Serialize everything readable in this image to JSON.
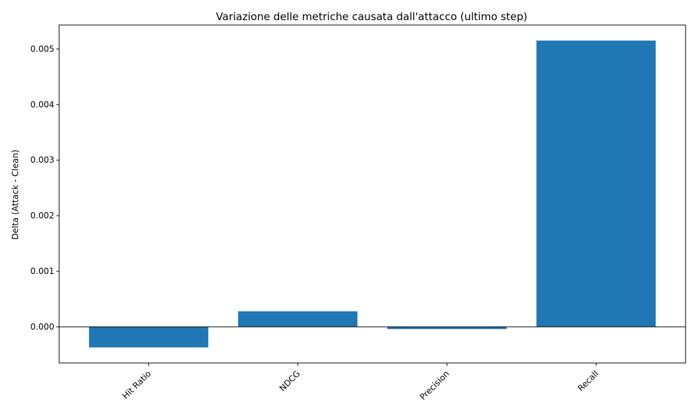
{
  "chart_data": {
    "type": "bar",
    "title": "Variazione delle metriche causata dall'attacco (ultimo step)",
    "xlabel": "",
    "ylabel": "Delta (Attack - Clean)",
    "categories": [
      "Hit Ratio",
      "NDCG",
      "Precision",
      "Recall"
    ],
    "values": [
      -0.00037,
      0.00028,
      -4e-05,
      0.00515
    ],
    "ylim": [
      -0.00065,
      0.00543
    ],
    "yticks": [
      0.0,
      0.001,
      0.002,
      0.003,
      0.004,
      0.005
    ],
    "ytick_labels": [
      "0.000",
      "0.001",
      "0.002",
      "0.003",
      "0.004",
      "0.005"
    ],
    "bar_color": "#1f77b4",
    "zero_line": true,
    "grid": false,
    "x_tick_rotation_deg": 45
  }
}
